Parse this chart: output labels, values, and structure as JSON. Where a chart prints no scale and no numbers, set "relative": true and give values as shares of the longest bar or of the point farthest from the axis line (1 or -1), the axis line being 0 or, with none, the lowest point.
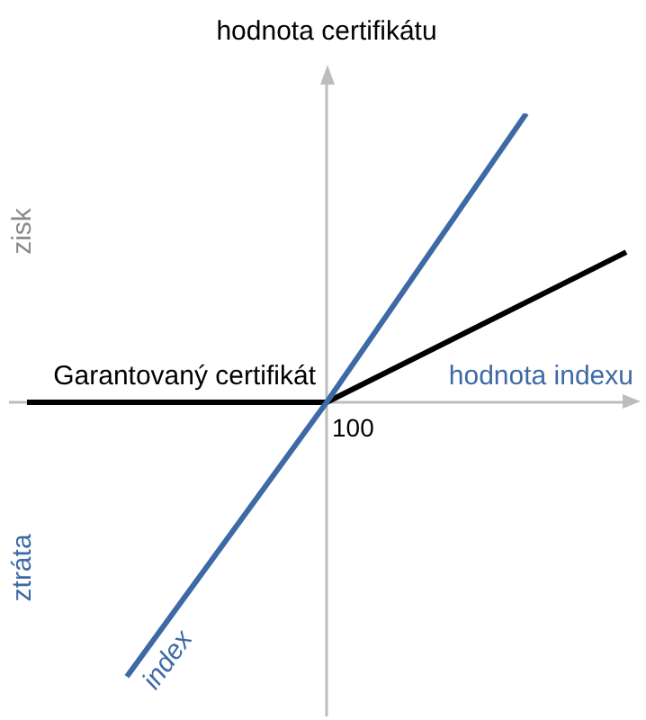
{
  "chart_data": {
    "type": "line",
    "relative": true,
    "ylabel": "hodnota certifikátu",
    "xlabel": "hodnota indexu",
    "categories": [
      null,
      null,
      null,
      null,
      null,
      null,
      null
    ],
    "series": [
      {
        "name": "index",
        "color": "#3d6aa6",
        "values": [
          null,
          -0.95,
          null,
          0,
          null,
          1,
          null
        ]
      },
      {
        "name": "Garantovaný certifikát",
        "color": "#000000",
        "values": [
          0,
          null,
          null,
          0,
          null,
          null,
          0.52
        ]
      }
    ],
    "annotations": [
      "zisk",
      "ztráta",
      "100"
    ],
    "grid": false,
    "legend": false,
    "marker": "none",
    "line_style": "solid"
  }
}
